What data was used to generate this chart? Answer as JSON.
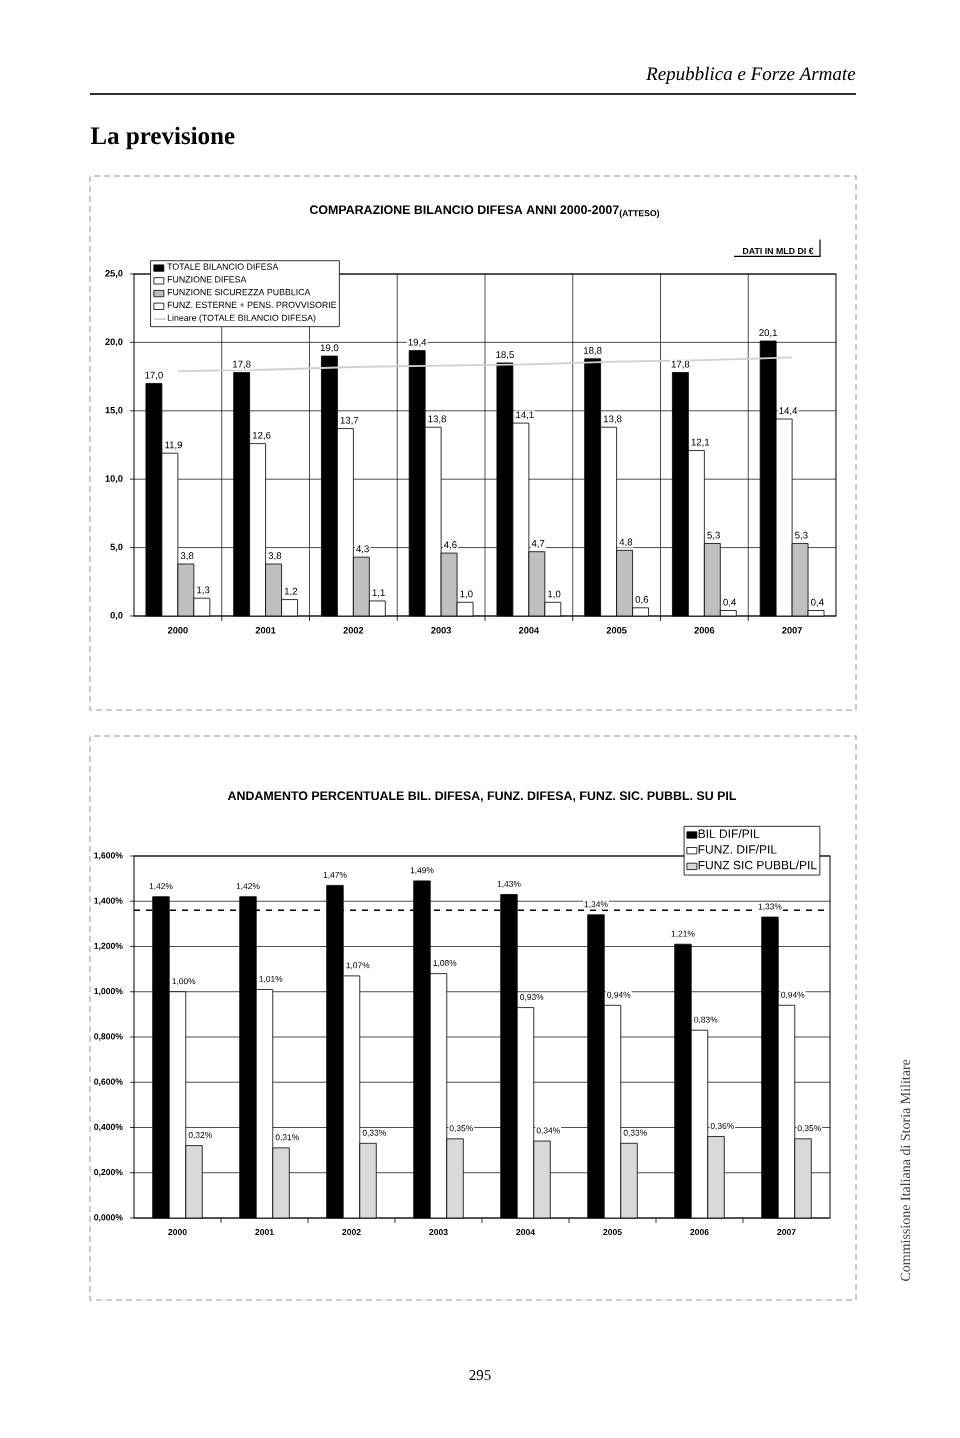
{
  "chart_data": [
    {
      "type": "bar",
      "title": "COMPARAZIONE BILANCIO DIFESA ANNI 2000-2007$_{(ATTESO)}$",
      "annotations": [
        "Repubblica e Forze Armate",
        "La previsione",
        "DATI IN MLD DI €"
      ],
      "categories": [
        "2000",
        "2001",
        "2002",
        "2003",
        "2004",
        "2005",
        "2006",
        "2007"
      ],
      "series": [
        {
          "name": "TOTALE BILANCIO DIFESA",
          "color": "#000000",
          "values": [
            17.0,
            17.8,
            19.0,
            19.4,
            18.5,
            18.8,
            17.8,
            20.1
          ],
          "value_labels": [
            "17,0",
            "17,8",
            "19,0",
            "19,4",
            "18,5",
            "18,8",
            "17,8",
            "20,1"
          ]
        },
        {
          "name": "FUNZIONE DIFESA",
          "color": "#ffffff",
          "values": [
            11.9,
            12.6,
            13.7,
            13.8,
            14.1,
            13.8,
            12.1,
            14.4
          ],
          "value_labels": [
            "11,9",
            "12,6",
            "13,7",
            "13,8",
            "14,1",
            "13,8",
            "12,1",
            "14,4"
          ]
        },
        {
          "name": "FUNZIONE SICUREZZA PUBBLICA",
          "color": "#bfbfbf",
          "values": [
            3.8,
            3.8,
            4.3,
            4.6,
            4.7,
            4.8,
            5.3,
            5.3
          ],
          "value_labels": [
            "3,8",
            "3,8",
            "4,3",
            "4,6",
            "4,7",
            "4,8",
            "5,3",
            "5,3"
          ]
        },
        {
          "name": "FUNZ. ESTERNE + PENS. PROVVISORIE",
          "color": "#ffffff",
          "values": [
            1.3,
            1.2,
            1.1,
            1.0,
            1.0,
            0.6,
            0.4,
            0.4
          ],
          "value_labels": [
            "1,3",
            "1,2",
            "1,1",
            "1,0",
            "1,0",
            "0,6",
            "0,4",
            "0,4"
          ]
        },
        {
          "name": "Lineare (TOTALE BILANCIO DIFESA)",
          "type": "line",
          "color": "#d0d0d0",
          "values": [
            17.9,
            18.0,
            18.2,
            18.3,
            18.4,
            18.6,
            18.7,
            18.9
          ]
        }
      ],
      "ylim": [
        0,
        25
      ],
      "yticks": [
        {
          "value": 0,
          "label": "0,0"
        },
        {
          "value": 5,
          "label": "5,0"
        },
        {
          "value": 10,
          "label": "10,0"
        },
        {
          "value": 15,
          "label": "15,0"
        },
        {
          "value": 20,
          "label": "20,0"
        },
        {
          "value": 25,
          "label": "25,0"
        }
      ],
      "grid": true,
      "legend": "top left"
    },
    {
      "type": "bar",
      "title": "ANDAMENTO PERCENTUALE BIL. DIFESA, FUNZ. DIFESA, FUNZ. SIC. PUBBL. SU PIL",
      "annotations": [
        "295",
        "Commissione Italiana di Storia Militare"
      ],
      "categories": [
        "2000",
        "2001",
        "2002",
        "2003",
        "2004",
        "2005",
        "2006",
        "2007"
      ],
      "series": [
        {
          "name": "BIL DIF/PIL",
          "color": "#000000",
          "values": [
            1.42,
            1.42,
            1.47,
            1.49,
            1.43,
            1.34,
            1.21,
            1.33
          ],
          "value_labels": [
            "1,42%",
            "1,42%",
            "1,47%",
            "1,49%",
            "1,43%",
            "1,34%",
            "1,21%",
            "1,33%"
          ]
        },
        {
          "name": "FUNZ. DIF/PIL",
          "color": "#ffffff",
          "values": [
            1.0,
            1.01,
            1.07,
            1.08,
            0.93,
            0.94,
            0.83,
            0.94
          ],
          "value_labels": [
            "1,00%",
            "1,01%",
            "1,07%",
            "1,08%",
            "0,93%",
            "0,94%",
            "0,83%",
            "0,94%"
          ]
        },
        {
          "name": "FUNZ SIC PUBBL/PIL",
          "color": "#d9d9d9",
          "values": [
            0.32,
            0.31,
            0.33,
            0.35,
            0.34,
            0.33,
            0.36,
            0.35
          ],
          "value_labels": [
            "0,32%",
            "0,31%",
            "0,33%",
            "0,35%",
            "0,34%",
            "0,33%",
            "0,36%",
            "0,35%"
          ]
        }
      ],
      "ylim": [
        0,
        1.6
      ],
      "yticks": [
        {
          "value": 0,
          "label": "0,000%"
        },
        {
          "value": 0.2,
          "label": "0,200%"
        },
        {
          "value": 0.4,
          "label": "0,400%"
        },
        {
          "value": 0.6,
          "label": "0,600%"
        },
        {
          "value": 0.8,
          "label": "0,800%"
        },
        {
          "value": 1.0,
          "label": "1,000%"
        },
        {
          "value": 1.2,
          "label": "1,200%"
        },
        {
          "value": 1.4,
          "label": "1,400%"
        },
        {
          "value": 1.6,
          "label": "1,600%"
        }
      ],
      "ref_lines": [
        {
          "axis": "y",
          "value": 1.36,
          "line_style": "dashed",
          "color": "#000000"
        }
      ],
      "grid": "y",
      "legend": "top right"
    }
  ]
}
